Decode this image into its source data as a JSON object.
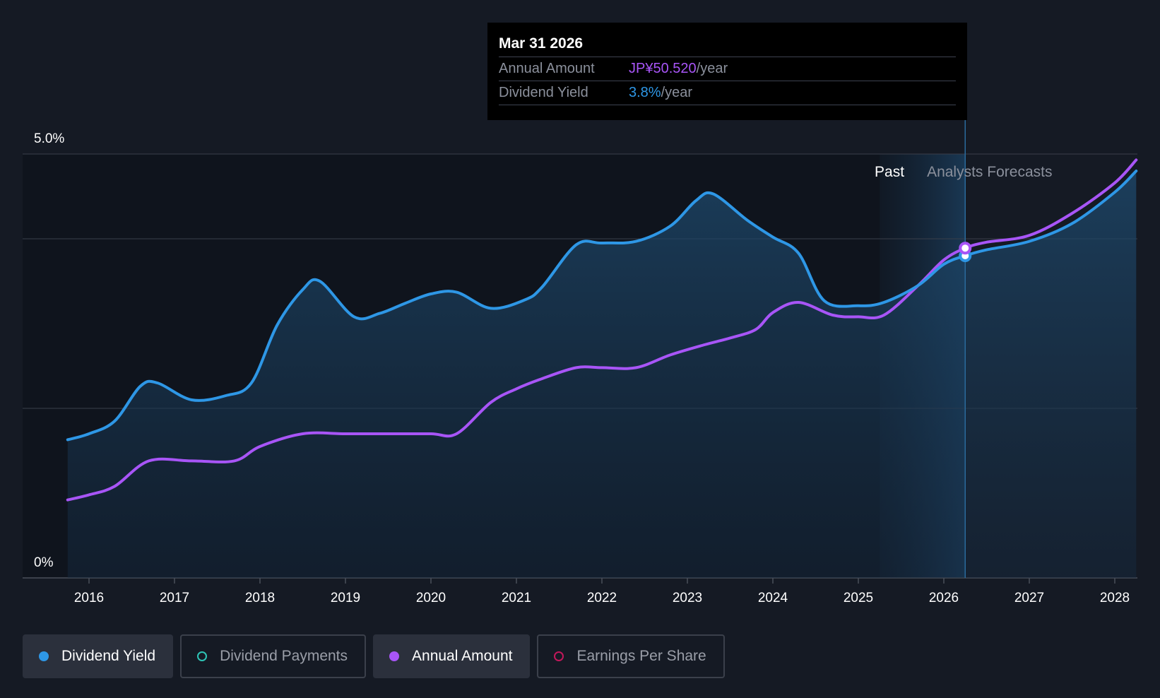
{
  "chart_data": {
    "type": "line",
    "title": "",
    "y_axis": {
      "unit": "%",
      "ylim": [
        0,
        5.0
      ],
      "ticks": [
        {
          "value": 0,
          "label": "0%"
        },
        {
          "value": 5.0,
          "label": "5.0%"
        }
      ],
      "gridlines": [
        2.0,
        4.0
      ]
    },
    "x_axis": {
      "ticks": [
        "2016",
        "2017",
        "2018",
        "2019",
        "2020",
        "2021",
        "2022",
        "2023",
        "2024",
        "2025",
        "2026",
        "2027",
        "2028"
      ]
    },
    "regions": {
      "past_label": "Past",
      "forecast_label": "Analysts Forecasts",
      "past_end": 2025.25,
      "forecast_start": 2025.67,
      "cursor": 2026.25
    },
    "series": [
      {
        "name": "Dividend Yield",
        "color": "#2e97e6",
        "filled": true,
        "points": [
          [
            2015.75,
            1.63
          ],
          [
            2016.0,
            1.7
          ],
          [
            2016.3,
            1.85
          ],
          [
            2016.6,
            2.26
          ],
          [
            2016.8,
            2.3
          ],
          [
            2017.2,
            2.1
          ],
          [
            2017.6,
            2.15
          ],
          [
            2017.9,
            2.3
          ],
          [
            2018.2,
            2.98
          ],
          [
            2018.5,
            3.4
          ],
          [
            2018.7,
            3.5
          ],
          [
            2019.1,
            3.08
          ],
          [
            2019.4,
            3.12
          ],
          [
            2019.7,
            3.24
          ],
          [
            2020.0,
            3.35
          ],
          [
            2020.3,
            3.37
          ],
          [
            2020.7,
            3.18
          ],
          [
            2021.1,
            3.28
          ],
          [
            2021.3,
            3.43
          ],
          [
            2021.7,
            3.93
          ],
          [
            2022.0,
            3.95
          ],
          [
            2022.4,
            3.97
          ],
          [
            2022.8,
            4.15
          ],
          [
            2023.1,
            4.45
          ],
          [
            2023.3,
            4.53
          ],
          [
            2023.7,
            4.22
          ],
          [
            2024.0,
            4.02
          ],
          [
            2024.3,
            3.83
          ],
          [
            2024.6,
            3.27
          ],
          [
            2025.0,
            3.21
          ],
          [
            2025.3,
            3.25
          ],
          [
            2025.7,
            3.45
          ],
          [
            2026.0,
            3.7
          ],
          [
            2026.25,
            3.8
          ],
          [
            2026.5,
            3.87
          ],
          [
            2027.0,
            3.97
          ],
          [
            2027.5,
            4.18
          ],
          [
            2028.0,
            4.55
          ],
          [
            2028.25,
            4.8
          ]
        ]
      },
      {
        "name": "Annual Amount",
        "color": "#a855f7",
        "filled": false,
        "points": [
          [
            2015.75,
            0.92
          ],
          [
            2016.0,
            0.98
          ],
          [
            2016.3,
            1.08
          ],
          [
            2016.7,
            1.38
          ],
          [
            2017.2,
            1.38
          ],
          [
            2017.7,
            1.38
          ],
          [
            2018.0,
            1.55
          ],
          [
            2018.5,
            1.7
          ],
          [
            2019.0,
            1.7
          ],
          [
            2019.5,
            1.7
          ],
          [
            2020.0,
            1.7
          ],
          [
            2020.3,
            1.7
          ],
          [
            2020.7,
            2.07
          ],
          [
            2021.0,
            2.23
          ],
          [
            2021.3,
            2.35
          ],
          [
            2021.7,
            2.48
          ],
          [
            2022.0,
            2.48
          ],
          [
            2022.4,
            2.48
          ],
          [
            2022.8,
            2.63
          ],
          [
            2023.2,
            2.75
          ],
          [
            2023.5,
            2.83
          ],
          [
            2023.8,
            2.93
          ],
          [
            2024.0,
            3.13
          ],
          [
            2024.3,
            3.25
          ],
          [
            2024.7,
            3.1
          ],
          [
            2025.0,
            3.08
          ],
          [
            2025.3,
            3.1
          ],
          [
            2025.7,
            3.45
          ],
          [
            2026.0,
            3.75
          ],
          [
            2026.25,
            3.89
          ],
          [
            2026.5,
            3.96
          ],
          [
            2027.0,
            4.04
          ],
          [
            2027.5,
            4.3
          ],
          [
            2028.0,
            4.66
          ],
          [
            2028.25,
            4.93
          ]
        ]
      }
    ],
    "tooltip": {
      "date": "Mar 31 2026",
      "rows": [
        {
          "label": "Annual Amount",
          "value": "JP¥50.520",
          "unit": "/year"
        },
        {
          "label": "Dividend Yield",
          "value": "3.8%",
          "unit": "/year"
        }
      ]
    },
    "legend": [
      {
        "label": "Dividend Yield",
        "color": "#2e97e6",
        "active": true
      },
      {
        "label": "Dividend Payments",
        "color": "#2ec4b6",
        "active": false
      },
      {
        "label": "Annual Amount",
        "color": "#a855f7",
        "active": true
      },
      {
        "label": "Earnings Per Share",
        "color": "#c2185b",
        "active": false
      }
    ]
  }
}
